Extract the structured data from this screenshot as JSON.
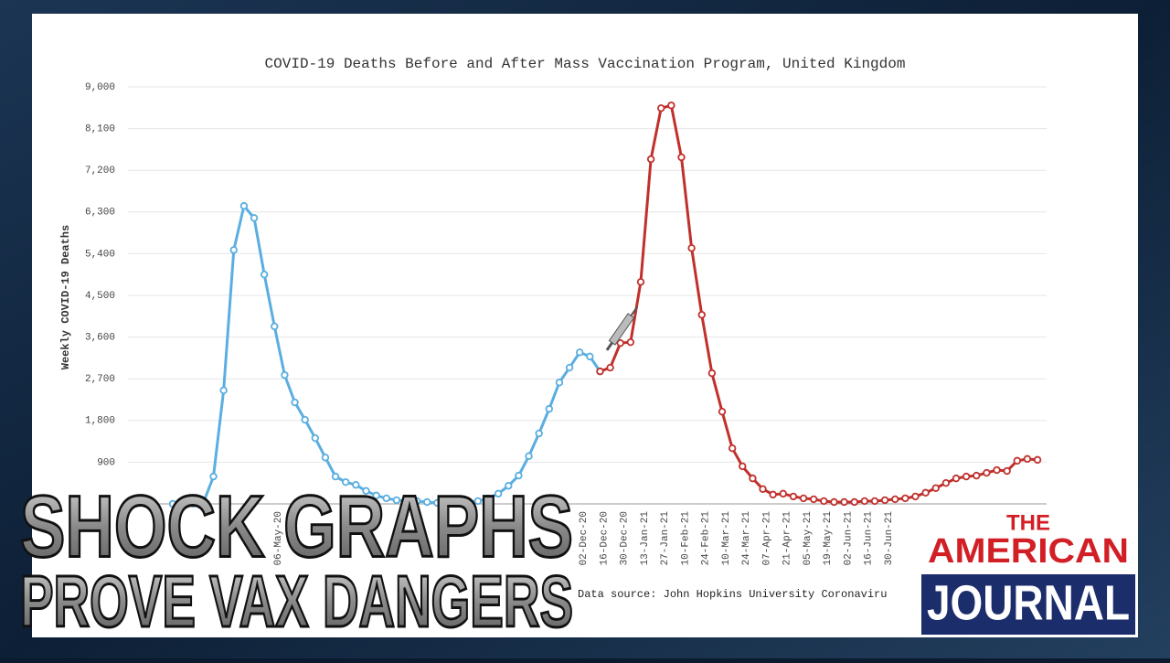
{
  "chart_data": {
    "type": "line",
    "title": "COVID-19 Deaths Before and After Mass Vaccination Program, United Kingdom",
    "y_label": "Weekly COVID-19 Deaths",
    "source": "Data source: John Hopkins University Coronaviru",
    "categories": [
      null,
      null,
      null,
      null,
      null,
      null,
      null,
      null,
      null,
      null,
      "06-May-20",
      null,
      null,
      null,
      null,
      null,
      null,
      null,
      null,
      null,
      null,
      null,
      null,
      null,
      null,
      null,
      null,
      null,
      null,
      null,
      null,
      null,
      null,
      null,
      null,
      null,
      null,
      null,
      null,
      null,
      "02-Dec-20",
      null,
      "16-Dec-20",
      null,
      "30-Dec-20",
      null,
      "13-Jan-21",
      null,
      "27-Jan-21",
      null,
      "10-Feb-21",
      null,
      "24-Feb-21",
      null,
      "10-Mar-21",
      null,
      "24-Mar-21",
      null,
      "07-Apr-21",
      null,
      "21-Apr-21",
      null,
      "05-May-21",
      null,
      "19-May-21",
      null,
      "02-Jun-21",
      null,
      "16-Jun-21",
      null,
      "30-Jun-21",
      null,
      null,
      null,
      null,
      null,
      null,
      null,
      null,
      null,
      null,
      null,
      null,
      null,
      null,
      null
    ],
    "series": [
      {
        "color": "#5aaee0",
        "values": [
          0,
          0,
          5,
          20,
          590,
          2450,
          5480,
          6430,
          6170,
          4950,
          3830,
          2780,
          2190,
          1815,
          1420,
          1000,
          590,
          470,
          410,
          280,
          180,
          120,
          80,
          60,
          60,
          40,
          20,
          20,
          20,
          40,
          60,
          120,
          220,
          390,
          610,
          1030,
          1520,
          2050,
          2620,
          2940,
          3270,
          3180,
          2860,
          null,
          null,
          null,
          null,
          null,
          null,
          null,
          null,
          null,
          null,
          null,
          null,
          null,
          null,
          null,
          null,
          null,
          null,
          null,
          null,
          null,
          null,
          null,
          null,
          null,
          null,
          null,
          null,
          null,
          null,
          null,
          null,
          null,
          null,
          null,
          null,
          null,
          null,
          null,
          null,
          null,
          null,
          null
        ]
      },
      {
        "color": "#c0302c",
        "values": [
          null,
          null,
          null,
          null,
          null,
          null,
          null,
          null,
          null,
          null,
          null,
          null,
          null,
          null,
          null,
          null,
          null,
          null,
          null,
          null,
          null,
          null,
          null,
          null,
          null,
          null,
          null,
          null,
          null,
          null,
          null,
          null,
          null,
          null,
          null,
          null,
          null,
          null,
          null,
          null,
          null,
          null,
          2860,
          2940,
          3470,
          3490,
          4790,
          7440,
          8540,
          8600,
          7480,
          5520,
          4080,
          2820,
          1990,
          1200,
          810,
          550,
          320,
          200,
          220,
          160,
          120,
          100,
          60,
          40,
          40,
          40,
          60,
          60,
          80,
          100,
          120,
          160,
          240,
          340,
          450,
          550,
          590,
          610,
          670,
          730,
          710,
          930,
          970,
          950
        ]
      }
    ],
    "ylim": [
      0,
      9000
    ],
    "yticks": [
      {
        "value": 900,
        "label": "900"
      },
      {
        "value": 1800,
        "label": "1,800"
      },
      {
        "value": 2700,
        "label": "2,700"
      },
      {
        "value": 3600,
        "label": "3,600"
      },
      {
        "value": 4500,
        "label": "4,500"
      },
      {
        "value": 5400,
        "label": "5,400"
      },
      {
        "value": 6300,
        "label": "6,300"
      },
      {
        "value": 7200,
        "label": "7,200"
      },
      {
        "value": 8100,
        "label": "8,100"
      },
      {
        "value": 9000,
        "label": "9,000"
      }
    ],
    "grid": true
  },
  "overlay": {
    "headline": "SHOCK GRAPHS",
    "subheadline": "PROVE VAX DANGERS"
  },
  "logo": {
    "line1": "THE",
    "line2": "AMERICAN",
    "line3": "JOURNAL"
  }
}
